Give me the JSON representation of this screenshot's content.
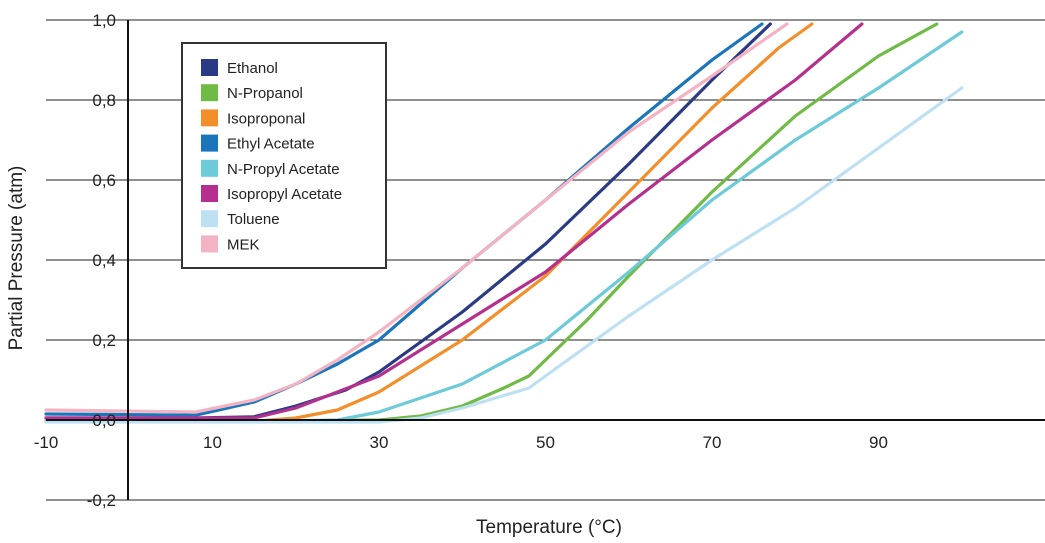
{
  "chart_data": {
    "type": "line",
    "xlabel": "Temperature (°C)",
    "ylabel": "Partial Pressure (atm)",
    "xlim": [
      -10,
      110
    ],
    "ylim": [
      -0.2,
      1.0
    ],
    "x_ticks": [
      -10,
      10,
      30,
      50,
      70,
      90
    ],
    "x_tick_labels": [
      "-10",
      "10",
      "30",
      "50",
      "70",
      "90"
    ],
    "y_ticks": [
      1.0,
      0.8,
      0.6,
      0.4,
      0.2,
      0.0,
      -0.2
    ],
    "y_tick_labels": [
      "1,0",
      "0,8",
      "0,6",
      "0,4",
      "0,2",
      "0,0",
      "-0,2"
    ],
    "grid": "horizontal",
    "legend_position": "top-left",
    "series": [
      {
        "name": "Ethanol",
        "color": "#2b3a84",
        "x": [
          -10,
          8,
          15,
          20,
          26,
          30,
          40,
          50,
          60,
          70,
          77
        ],
        "y": [
          0.005,
          0.005,
          0.008,
          0.035,
          0.075,
          0.12,
          0.27,
          0.44,
          0.64,
          0.85,
          0.99
        ]
      },
      {
        "name": "N-Propanol",
        "color": "#6fbb45",
        "x": [
          -10,
          20,
          30,
          35,
          40,
          45,
          48,
          50,
          55,
          60,
          70,
          80,
          90,
          97
        ],
        "y": [
          -0.002,
          -0.002,
          0.0,
          0.01,
          0.035,
          0.08,
          0.11,
          0.15,
          0.25,
          0.36,
          0.57,
          0.76,
          0.91,
          0.99
        ]
      },
      {
        "name": "Isoproponal",
        "color": "#f28f2a",
        "x": [
          -10,
          15,
          20,
          25,
          30,
          40,
          50,
          60,
          70,
          78,
          82
        ],
        "y": [
          -0.003,
          -0.003,
          0.005,
          0.025,
          0.07,
          0.2,
          0.36,
          0.57,
          0.78,
          0.93,
          0.99
        ]
      },
      {
        "name": "Ethyl Acetate",
        "color": "#1a75bb",
        "x": [
          -10,
          8,
          15,
          20,
          25,
          30,
          40,
          50,
          60,
          70,
          76
        ],
        "y": [
          0.015,
          0.012,
          0.045,
          0.09,
          0.14,
          0.2,
          0.38,
          0.55,
          0.73,
          0.9,
          0.99
        ]
      },
      {
        "name": "N-Propyl Acetate",
        "color": "#6ccad9",
        "x": [
          -10,
          20,
          25,
          30,
          40,
          50,
          60,
          70,
          80,
          90,
          100
        ],
        "y": [
          -0.002,
          -0.002,
          0.0,
          0.02,
          0.09,
          0.2,
          0.37,
          0.55,
          0.7,
          0.83,
          0.97
        ]
      },
      {
        "name": "Isopropyl Acetate",
        "color": "#b5308e",
        "x": [
          -10,
          15,
          20,
          25,
          30,
          40,
          50,
          60,
          70,
          80,
          88
        ],
        "y": [
          0.005,
          0.005,
          0.03,
          0.07,
          0.11,
          0.24,
          0.37,
          0.54,
          0.7,
          0.85,
          0.99
        ]
      },
      {
        "name": "Toluene",
        "color": "#bde0f3",
        "x": [
          -10,
          30,
          35,
          40,
          48,
          50,
          60,
          70,
          80,
          90,
          100
        ],
        "y": [
          -0.005,
          -0.005,
          0.005,
          0.03,
          0.08,
          0.11,
          0.26,
          0.4,
          0.53,
          0.68,
          0.83
        ]
      },
      {
        "name": "MEK",
        "color": "#f3b3c2",
        "x": [
          -10,
          8,
          15,
          20,
          25,
          30,
          40,
          50,
          60,
          70,
          79
        ],
        "y": [
          0.025,
          0.02,
          0.05,
          0.09,
          0.15,
          0.22,
          0.38,
          0.55,
          0.72,
          0.86,
          0.99
        ]
      }
    ]
  }
}
